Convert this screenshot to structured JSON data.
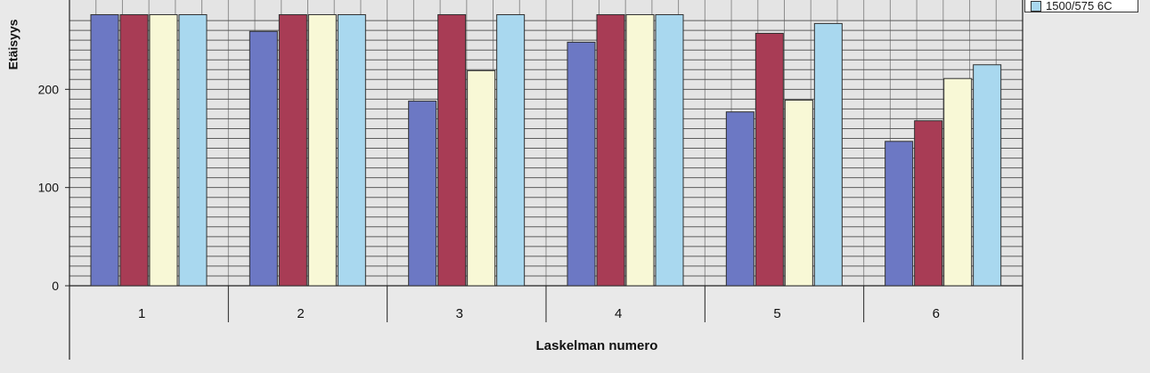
{
  "chart_data": {
    "type": "bar",
    "xlabel": "Laskelman numero",
    "ylabel": "Etäisyys",
    "categories": [
      "1",
      "2",
      "3",
      "4",
      "5",
      "6"
    ],
    "yticks": [
      "0",
      "100",
      "200"
    ],
    "ylim": [
      0,
      276
    ],
    "grid": true,
    "legend_position": "top-right",
    "series": [
      {
        "values": [
          276,
          259,
          188,
          248,
          177,
          147
        ],
        "color": "#6c78c4"
      },
      {
        "values": [
          276,
          276,
          276,
          276,
          257,
          168
        ],
        "color": "#a83c55"
      },
      {
        "values": [
          276,
          276,
          219,
          276,
          189,
          211
        ],
        "color": "#f8f8d6"
      },
      {
        "name": "1500/575 6C",
        "values": [
          276,
          276,
          276,
          276,
          267,
          225
        ],
        "color": "#a9d8ef"
      }
    ]
  }
}
